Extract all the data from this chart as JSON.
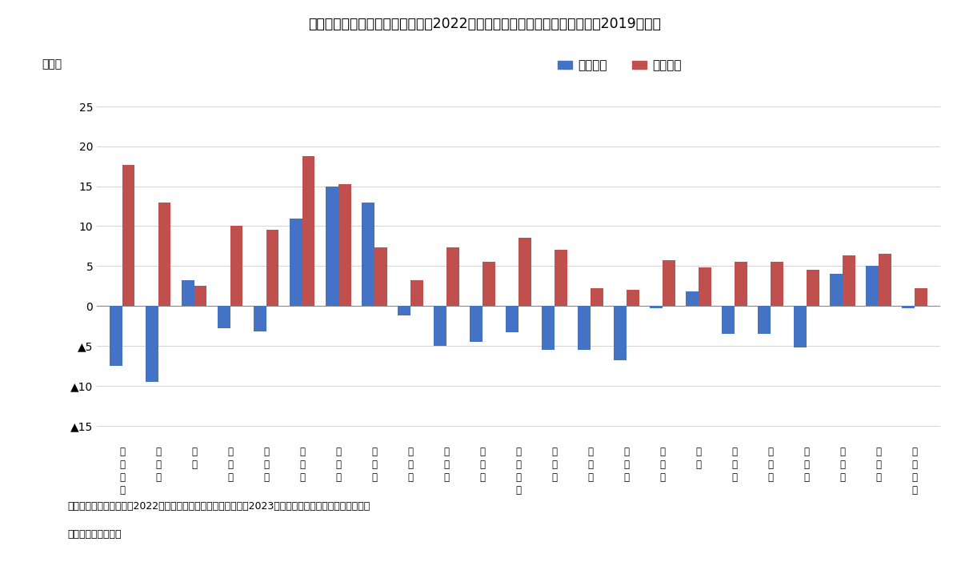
{
  "title": "《図表６》東京都の区部別に見た2022年の転入者数、転出者数の増減率（2019年比）",
  "ylabel": "（％）",
  "categories": [
    "千\n代\n田\n区",
    "中\n央\n区",
    "港\n区",
    "新\n宿\n区",
    "文\n京\n区",
    "台\n東\n区",
    "墨\n田\n区",
    "江\n東\n区",
    "品\n川\n区",
    "目\n黒\n区",
    "大\n田\n区",
    "世\n田\n谷\n区",
    "渋\n谷\n区",
    "中\n野\n区",
    "杉\n並\n区",
    "豊\n島\n区",
    "北\n区",
    "茸\n川\n区",
    "板\n橋\n区",
    "練\n馬\n区",
    "足\n立\n区",
    "葛\n飾\n区",
    "江\n戸\n川\n区"
  ],
  "inflow": [
    -7.5,
    -9.5,
    3.2,
    -2.8,
    -3.2,
    11.0,
    15.0,
    13.0,
    -1.2,
    -5.0,
    -4.5,
    -3.3,
    -5.5,
    -5.5,
    -6.8,
    -0.3,
    1.8,
    -3.5,
    -3.5,
    -5.2,
    4.0,
    5.0,
    -0.3
  ],
  "outflow": [
    17.7,
    13.0,
    2.5,
    10.0,
    9.5,
    18.8,
    15.3,
    7.3,
    3.2,
    7.3,
    5.5,
    8.5,
    7.0,
    2.2,
    2.0,
    5.7,
    4.8,
    5.5,
    5.5,
    4.5,
    6.3,
    6.5,
    2.2
  ],
  "inflow_color": "#4472C4",
  "outflow_color": "#C0504D",
  "legend_inflow": "転入者数",
  "legend_outflow": "転出者数",
  "ylim": [
    -17,
    27
  ],
  "yticks": [
    25,
    20,
    15,
    10,
    5,
    0,
    -5,
    -10,
    -15
  ],
  "ytick_labels": [
    "25",
    "20",
    "15",
    "10",
    "5",
    "0",
    "▲5",
    "▲10",
    "▲15"
  ],
  "caption_line1": "（資料）総務省統計局「2022年住民基本台帳人口移動報告」（2023年）より、ＳＯＭＰＯインスティテ",
  "caption_line2": "ュート・プラス作成",
  "background_color": "#ffffff"
}
